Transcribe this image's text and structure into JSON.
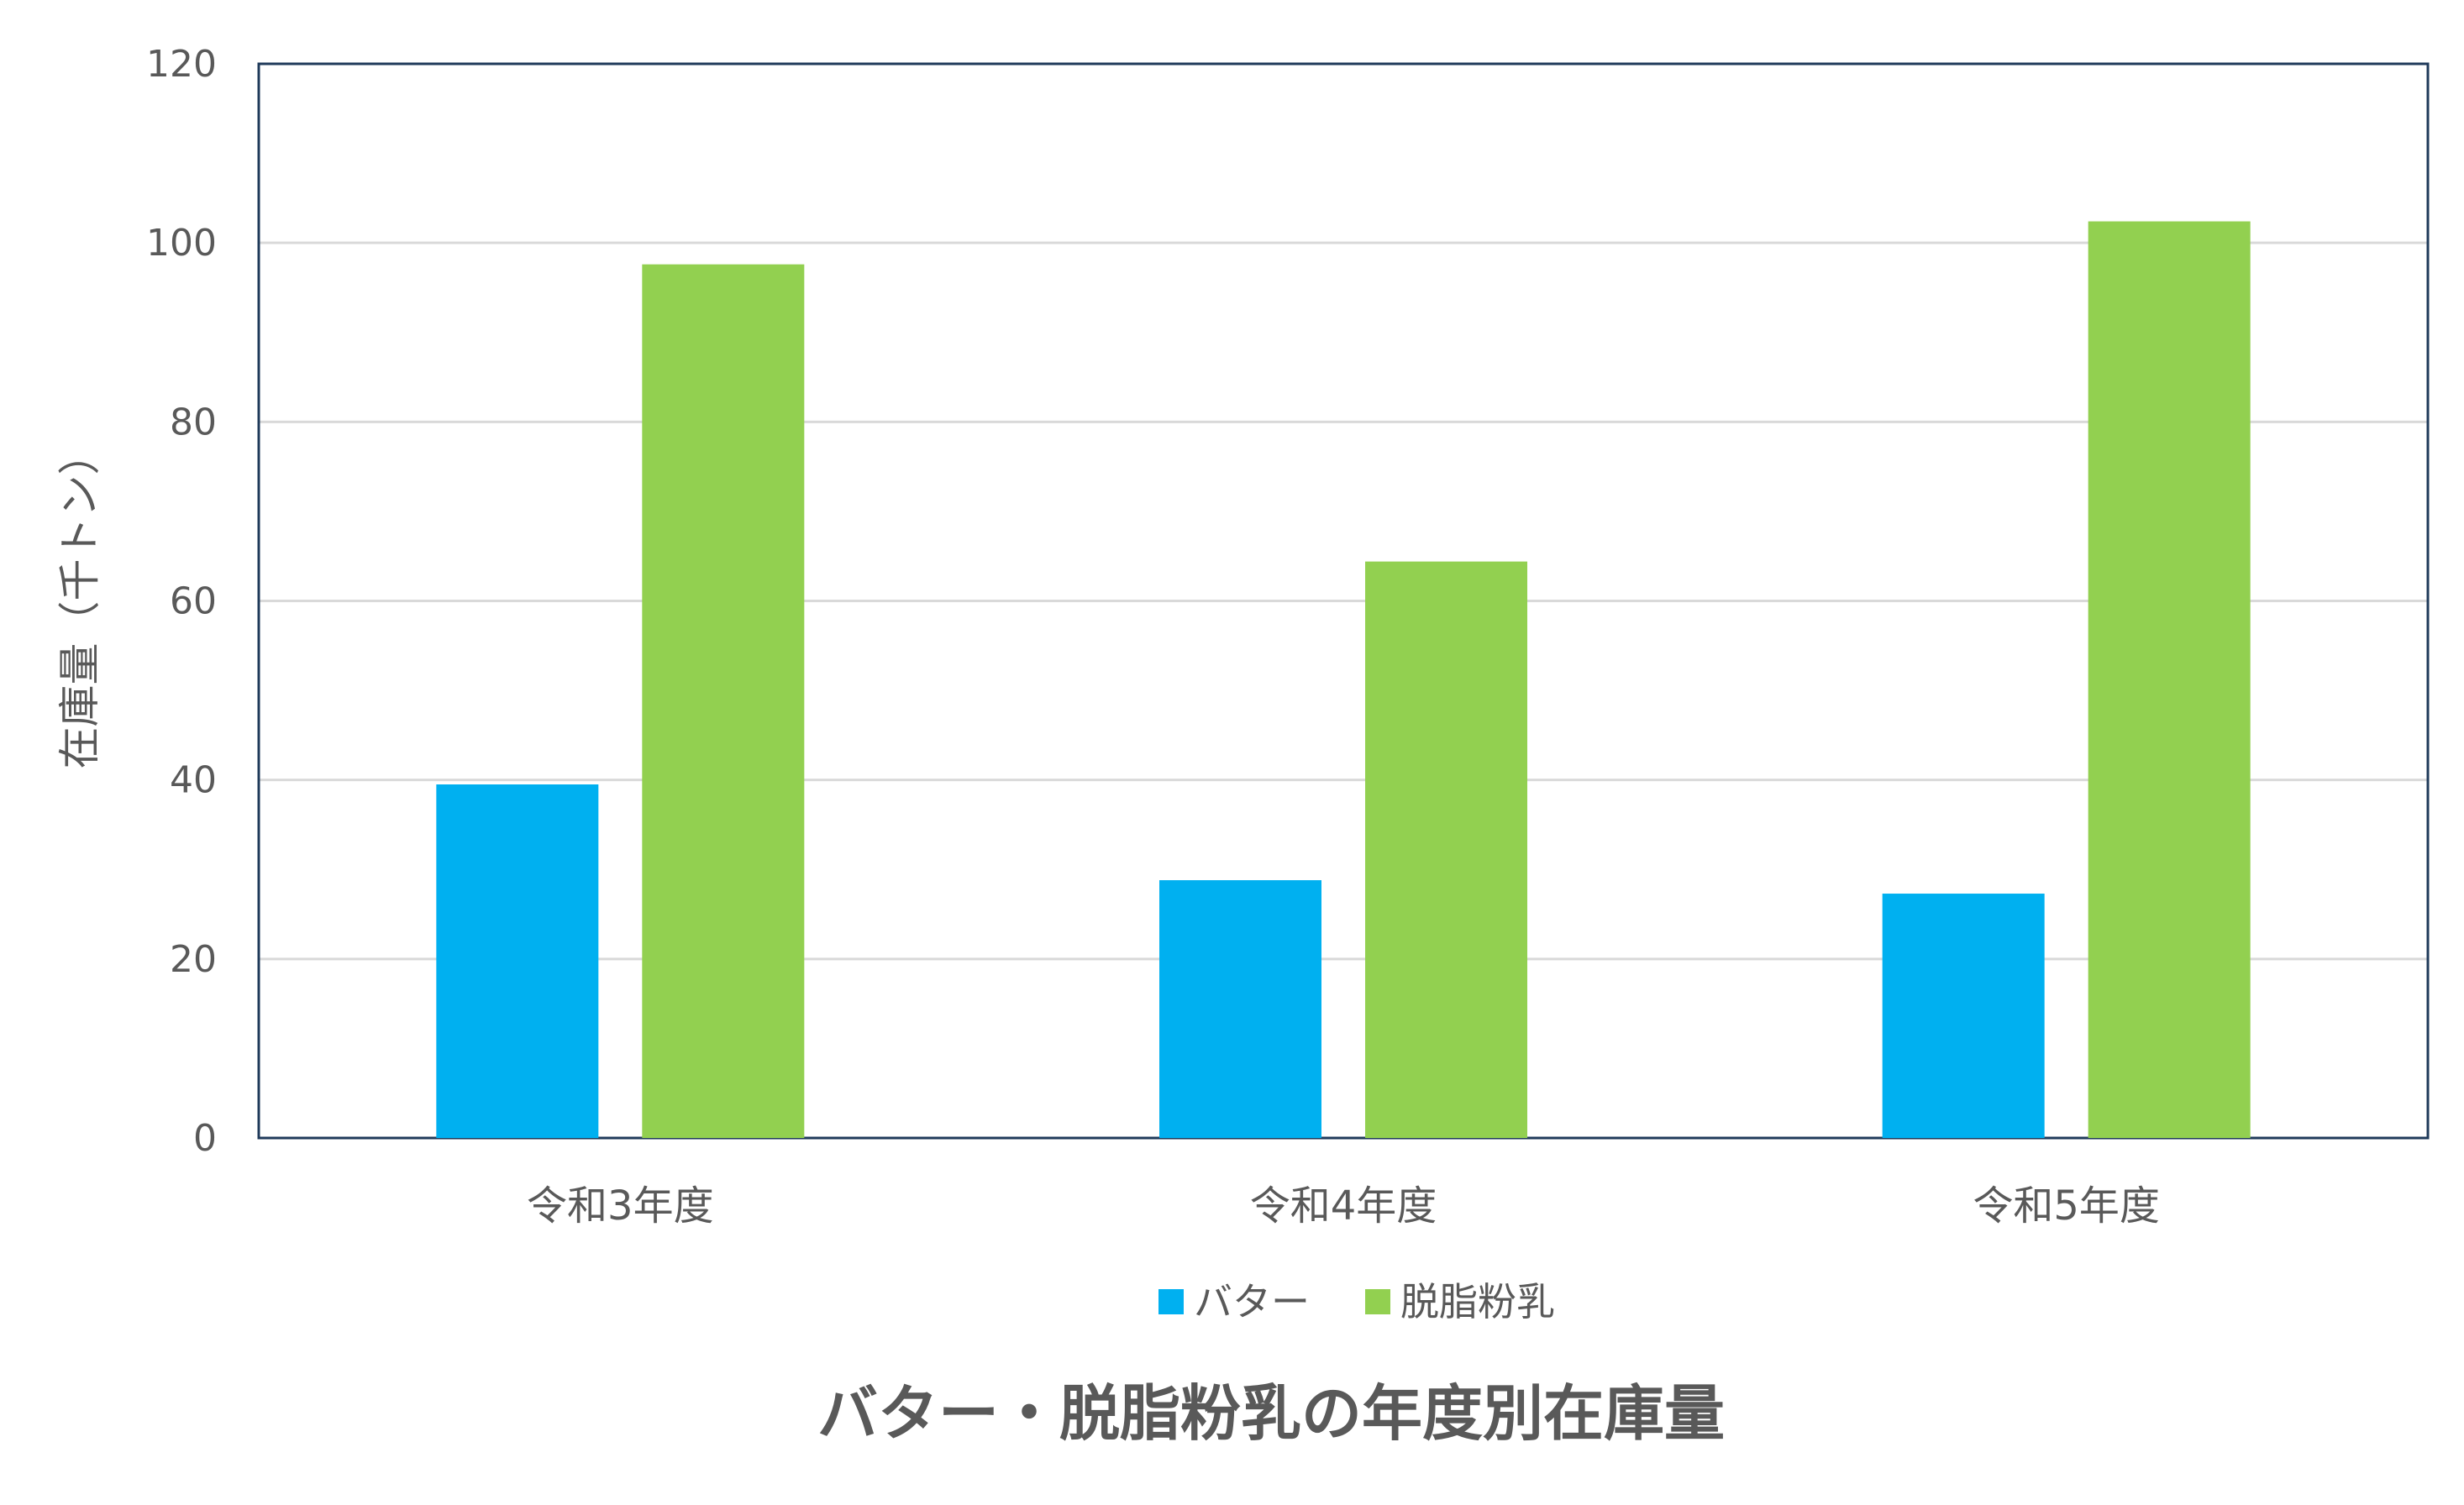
{
  "chart_data": {
    "type": "bar",
    "title": "バター・脱脂粉乳の年度別在庫量",
    "xlabel": "",
    "ylabel": "在庫量（千トン）",
    "categories": [
      "令和3年度",
      "令和4年度",
      "令和5年度"
    ],
    "series": [
      {
        "name": "バター",
        "color": "#00b0f0",
        "values": [
          39.5,
          28.8,
          27.3
        ]
      },
      {
        "name": "脱脂粉乳",
        "color": "#92d050",
        "values": [
          97.6,
          64.4,
          102.4
        ]
      }
    ],
    "ylim": [
      0,
      120
    ],
    "yticks": [
      0,
      20,
      40,
      60,
      80,
      100,
      120
    ],
    "grid": true,
    "legend": "bottom"
  }
}
